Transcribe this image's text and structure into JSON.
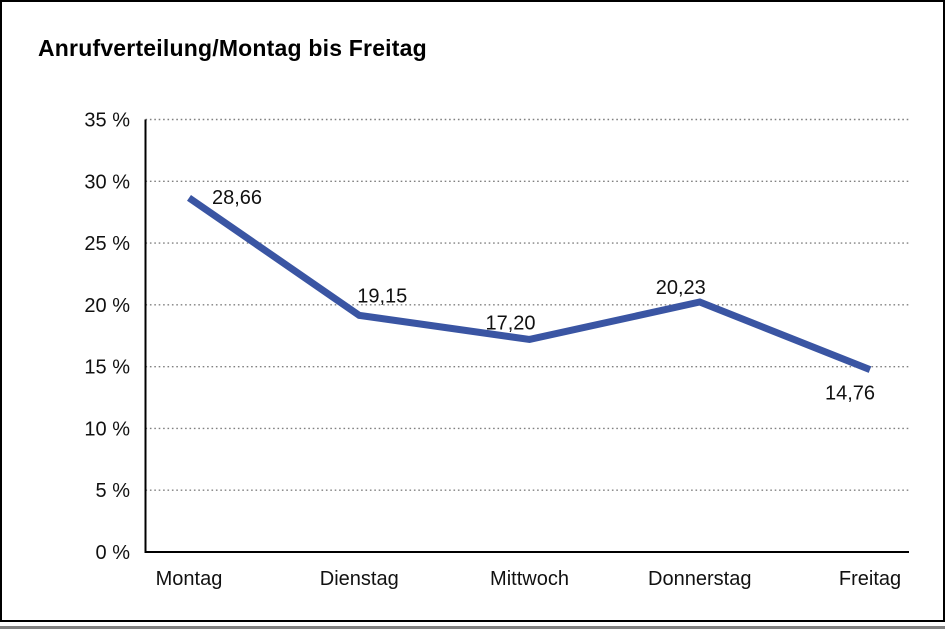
{
  "chart": {
    "title": "Anrufverteilung/Montag bis Freitag"
  },
  "chart_data": {
    "type": "line",
    "title": "Anrufverteilung/Montag bis Freitag",
    "categories": [
      "Montag",
      "Dienstag",
      "Mittwoch",
      "Donnerstag",
      "Freitag"
    ],
    "series": [
      {
        "name": "Anrufverteilung",
        "values": [
          28.66,
          19.15,
          17.2,
          20.23,
          14.76
        ]
      }
    ],
    "value_labels": [
      "28,66",
      "19,15",
      "17,20",
      "20,23",
      "14,76"
    ],
    "ytick_labels": [
      "35 %",
      "30 %",
      "25 %",
      "20 %",
      "15 %",
      "10 %",
      "5 %",
      "0 %"
    ],
    "ytick_values": [
      35,
      30,
      25,
      20,
      15,
      10,
      5,
      0
    ],
    "ylim": [
      0,
      35
    ],
    "ytick_step": 5,
    "grid": "horizontal-dotted",
    "legend": "none",
    "colors": {
      "line": "#3A55A3",
      "axis": "#000000",
      "grid": "#808080",
      "frame": "#000000",
      "bottom_bar": "#808080",
      "text": "#111111"
    }
  }
}
